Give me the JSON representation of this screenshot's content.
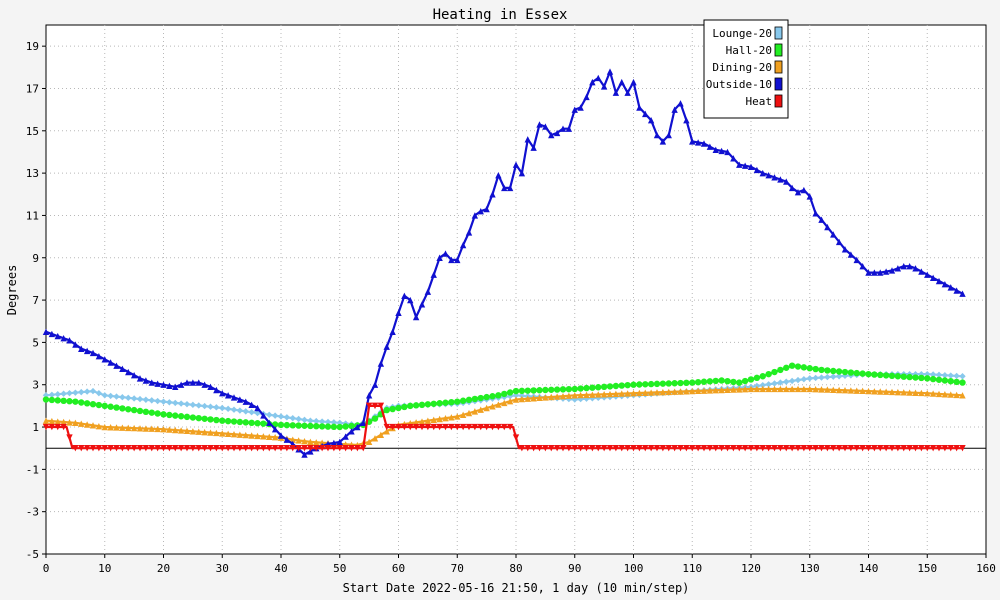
{
  "chart_data": {
    "type": "line",
    "title": "Heating in Essex",
    "xlabel": "Start Date 2022-05-16 21:50, 1 day (10 min/step)",
    "ylabel": "Degrees",
    "xlim": [
      0,
      160
    ],
    "ylim": [
      -5,
      20
    ],
    "x_ticks": [
      0,
      10,
      20,
      30,
      40,
      50,
      60,
      70,
      80,
      90,
      100,
      110,
      120,
      130,
      140,
      150,
      160
    ],
    "y_ticks": [
      -5,
      -3,
      -1,
      1,
      3,
      5,
      7,
      9,
      11,
      13,
      15,
      17,
      19
    ],
    "grid": true,
    "legend_position": "top-right",
    "series": [
      {
        "name": "Lounge-20",
        "color": "#88c8ec",
        "marker": "diamond",
        "x": [
          0,
          4,
          8,
          10,
          20,
          30,
          35,
          40,
          45,
          50,
          53,
          55,
          58,
          60,
          70,
          80,
          90,
          100,
          110,
          120,
          125,
          130,
          135,
          140,
          150,
          156
        ],
        "y": [
          2.5,
          2.6,
          2.7,
          2.5,
          2.2,
          1.9,
          1.7,
          1.5,
          1.3,
          1.2,
          1.1,
          1.3,
          1.9,
          2.0,
          2.1,
          2.5,
          2.3,
          2.5,
          2.7,
          2.9,
          3.1,
          3.3,
          3.4,
          3.5,
          3.5,
          3.4
        ]
      },
      {
        "name": "Hall-20",
        "color": "#22ee22",
        "marker": "circle",
        "x": [
          0,
          5,
          10,
          20,
          30,
          40,
          45,
          50,
          54,
          56,
          58,
          62,
          70,
          77,
          80,
          90,
          100,
          110,
          115,
          118,
          122,
          127,
          132,
          140,
          150,
          156
        ],
        "y": [
          2.3,
          2.2,
          2.0,
          1.6,
          1.3,
          1.1,
          1.05,
          1.0,
          1.1,
          1.4,
          1.8,
          2.0,
          2.2,
          2.5,
          2.7,
          2.8,
          3.0,
          3.1,
          3.2,
          3.1,
          3.4,
          3.9,
          3.7,
          3.5,
          3.3,
          3.1
        ]
      },
      {
        "name": "Dining-20",
        "color": "#f0a020",
        "marker": "triangle",
        "x": [
          0,
          5,
          10,
          20,
          30,
          35,
          40,
          42,
          45,
          50,
          53,
          55,
          58,
          60,
          70,
          75,
          80,
          90,
          100,
          110,
          120,
          130,
          140,
          150,
          156
        ],
        "y": [
          1.3,
          1.2,
          1.0,
          0.9,
          0.7,
          0.6,
          0.5,
          0.4,
          0.3,
          0.2,
          0.15,
          0.3,
          0.8,
          1.1,
          1.5,
          1.9,
          2.3,
          2.5,
          2.6,
          2.7,
          2.8,
          2.8,
          2.7,
          2.6,
          2.5
        ]
      },
      {
        "name": "Outside-10",
        "color": "#1010d0",
        "marker": "triangle",
        "x": [
          0,
          2,
          4,
          6,
          8,
          10,
          12,
          14,
          16,
          18,
          20,
          22,
          24,
          26,
          28,
          30,
          32,
          34,
          36,
          38,
          40,
          42,
          44,
          46,
          48,
          50,
          52,
          54,
          55,
          56,
          57,
          58,
          59,
          60,
          61,
          62,
          63,
          64,
          65,
          66,
          67,
          68,
          69,
          70,
          71,
          72,
          73,
          74,
          75,
          76,
          77,
          78,
          79,
          80,
          81,
          82,
          83,
          84,
          85,
          86,
          87,
          88,
          89,
          90,
          91,
          92,
          93,
          94,
          95,
          96,
          97,
          98,
          99,
          100,
          101,
          102,
          103,
          104,
          105,
          106,
          107,
          108,
          109,
          110,
          112,
          114,
          116,
          118,
          120,
          122,
          124,
          126,
          127,
          128,
          129,
          130,
          131,
          132,
          134,
          136,
          138,
          140,
          142,
          144,
          146,
          147,
          148,
          150,
          152,
          154,
          156
        ],
        "y": [
          5.5,
          5.3,
          5.1,
          4.7,
          4.5,
          4.2,
          3.9,
          3.6,
          3.3,
          3.1,
          3.0,
          2.9,
          3.1,
          3.1,
          2.9,
          2.6,
          2.4,
          2.2,
          1.9,
          1.2,
          0.6,
          0.2,
          -0.3,
          0.0,
          0.2,
          0.3,
          0.8,
          1.2,
          2.5,
          3.0,
          4.0,
          4.8,
          5.5,
          6.4,
          7.2,
          7.0,
          6.2,
          6.8,
          7.4,
          8.2,
          9.0,
          9.2,
          8.9,
          8.9,
          9.6,
          10.2,
          11.0,
          11.2,
          11.3,
          12.0,
          12.9,
          12.3,
          12.3,
          13.4,
          13.0,
          14.6,
          14.2,
          15.3,
          15.2,
          14.8,
          14.9,
          15.1,
          15.1,
          16.0,
          16.1,
          16.6,
          17.3,
          17.5,
          17.1,
          17.8,
          16.8,
          17.3,
          16.8,
          17.3,
          16.1,
          15.8,
          15.5,
          14.8,
          14.5,
          14.8,
          16.0,
          16.3,
          15.5,
          14.5,
          14.4,
          14.1,
          14.0,
          13.4,
          13.3,
          13.0,
          12.8,
          12.6,
          12.3,
          12.1,
          12.2,
          11.9,
          11.1,
          10.8,
          10.1,
          9.4,
          8.9,
          8.3,
          8.3,
          8.4,
          8.6,
          8.6,
          8.5,
          8.2,
          7.9,
          7.6,
          7.3
        ]
      },
      {
        "name": "Heat",
        "color": "#ee1010",
        "marker": "triangle-down",
        "x": [
          0,
          3.5,
          4.5,
          54,
          55,
          57,
          58,
          79.5,
          80.5,
          156
        ],
        "y": [
          1,
          1,
          0,
          0,
          2,
          2,
          1,
          1,
          0,
          0
        ]
      }
    ]
  }
}
